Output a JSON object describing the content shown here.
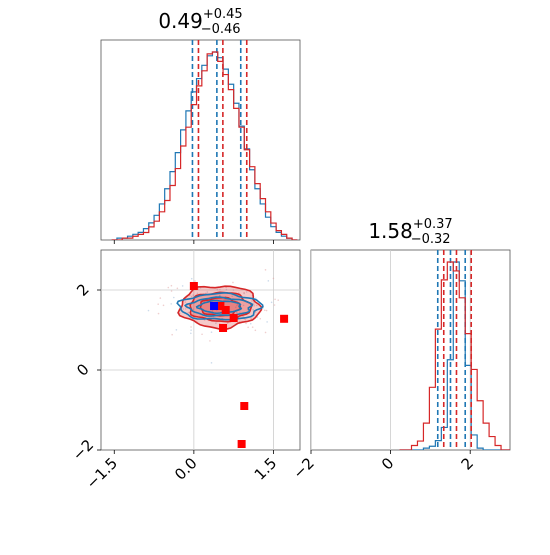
{
  "chart_data": [
    {
      "type": "histogram",
      "panel": "top-left marginal",
      "title_value": "0.49",
      "title_plus": "+0.45",
      "title_minus": "−0.46",
      "xlim": [
        -1.75,
        2.0
      ],
      "bins_x": [
        -1.5,
        -1.4,
        -1.3,
        -1.2,
        -1.1,
        -1.0,
        -0.9,
        -0.8,
        -0.7,
        -0.6,
        -0.5,
        -0.4,
        -0.3,
        -0.2,
        -0.1,
        0.0,
        0.1,
        0.2,
        0.3,
        0.4,
        0.5,
        0.6,
        0.7,
        0.8,
        0.9,
        1.0,
        1.1,
        1.2,
        1.3,
        1.4,
        1.5,
        1.6,
        1.7,
        1.8,
        1.9
      ],
      "series": [
        {
          "color": "#1f77b4",
          "values": [
            0,
            1,
            1,
            2,
            3,
            4,
            6,
            9,
            13,
            19,
            27,
            36,
            46,
            58,
            68,
            78,
            85,
            92,
            97,
            99,
            96,
            90,
            82,
            72,
            60,
            48,
            37,
            27,
            19,
            12,
            7,
            4,
            2,
            1,
            0
          ],
          "quantiles": [
            0.03,
            0.49,
            0.94
          ]
        },
        {
          "color": "#d62728",
          "values": [
            0,
            0,
            1,
            1,
            2,
            3,
            4,
            7,
            10,
            15,
            21,
            29,
            38,
            50,
            60,
            72,
            82,
            90,
            99,
            100,
            95,
            88,
            80,
            70,
            60,
            48,
            39,
            30,
            22,
            15,
            9,
            5,
            3,
            1,
            0
          ],
          "quantiles": [
            0.03,
            0.49,
            0.94
          ]
        }
      ]
    },
    {
      "type": "histogram",
      "panel": "bottom-right marginal",
      "title_value": "1.58",
      "title_plus": "+0.37",
      "title_minus": "−0.32",
      "xlim": [
        -2.0,
        3.0
      ],
      "xticks": [
        "−2",
        "0",
        "2"
      ],
      "xtick_values": [
        -2,
        0,
        2
      ],
      "bins_x": [
        0.3,
        0.45,
        0.6,
        0.75,
        0.9,
        1.05,
        1.2,
        1.35,
        1.5,
        1.65,
        1.8,
        1.95,
        2.1,
        2.25,
        2.4,
        2.55,
        2.7,
        2.85,
        3.0
      ],
      "series": [
        {
          "color": "#1f77b4",
          "values": [
            0,
            0,
            0,
            0,
            1,
            2,
            5,
            12,
            48,
            100,
            90,
            45,
            8,
            1,
            0,
            0,
            0,
            0,
            0
          ],
          "quantiles": [
            1.26,
            1.58,
            1.95
          ]
        },
        {
          "color": "#d62728",
          "values": [
            0,
            0,
            1,
            2,
            6,
            14,
            27,
            38,
            42,
            40,
            34,
            26,
            18,
            11,
            6,
            3,
            1,
            0,
            0
          ],
          "quantiles": [
            1.26,
            1.58,
            1.95
          ]
        }
      ]
    },
    {
      "type": "scatter",
      "panel": "bottom-left joint",
      "xlim": [
        -1.75,
        2.0
      ],
      "ylim": [
        -2.0,
        3.0
      ],
      "xticks": [
        "−1.5",
        "0.0",
        "1.5"
      ],
      "xtick_values": [
        -1.5,
        0.0,
        1.5
      ],
      "yticks": [
        "−2",
        "0",
        "2"
      ],
      "ytick_values": [
        -2,
        0,
        2
      ],
      "contours": [
        {
          "color": "#d62728",
          "center": [
            0.49,
            1.58
          ],
          "radii": [
            [
              1.5,
              1.05
            ],
            [
              1.15,
              0.72
            ],
            [
              0.75,
              0.45
            ]
          ],
          "fill_opacity": 0.25
        },
        {
          "color": "#1f77b4",
          "center": [
            0.49,
            1.58
          ],
          "radii": [
            [
              1.55,
              0.65
            ],
            [
              1.2,
              0.45
            ],
            [
              0.8,
              0.3
            ]
          ],
          "fill_opacity": 0
        }
      ],
      "red_markers": [
        [
          0.0,
          2.1
        ],
        [
          0.6,
          1.5
        ],
        [
          0.55,
          1.05
        ],
        [
          0.75,
          1.3
        ],
        [
          0.5,
          1.6
        ],
        [
          1.7,
          1.28
        ],
        [
          0.95,
          -0.9
        ],
        [
          0.9,
          -1.85
        ]
      ],
      "blue_markers": [
        [
          0.38,
          1.6
        ]
      ],
      "gridlines": {
        "x": [
          0.0,
          1.5
        ],
        "y": [
          0.0,
          2.0
        ]
      }
    }
  ]
}
